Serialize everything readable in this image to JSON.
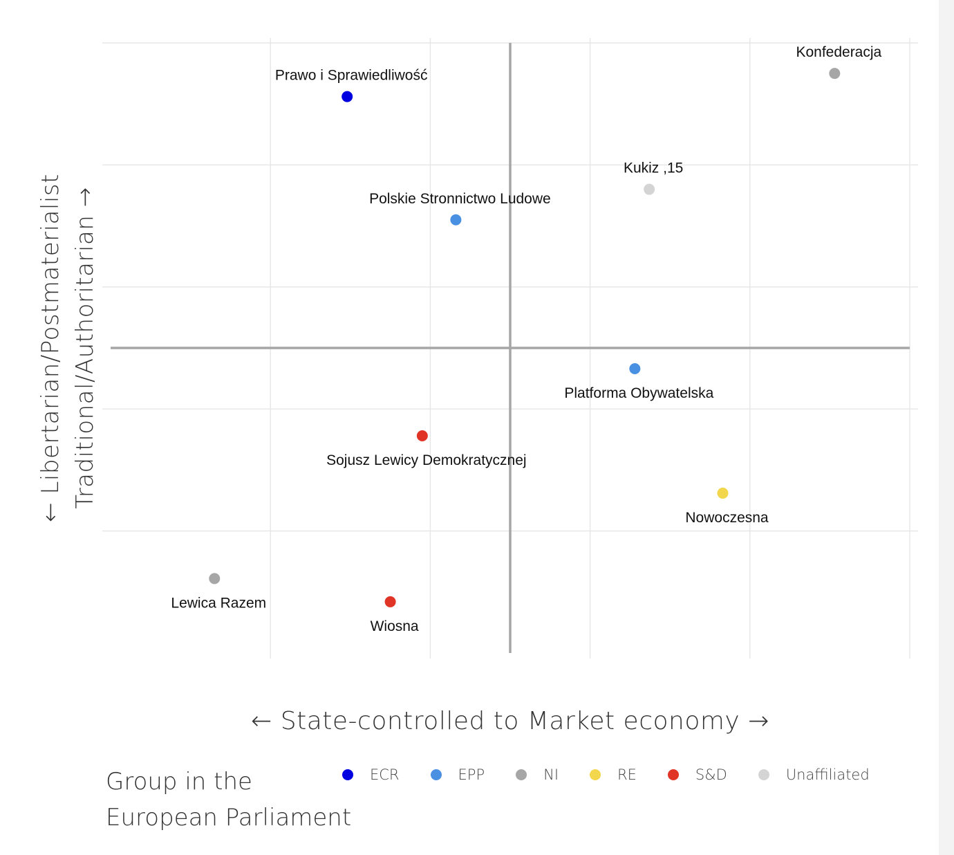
{
  "chart_data": {
    "type": "scatter",
    "xlabel": "← State-controlled to Market economy →",
    "ylabel_lines": [
      "← Libertarian/Postmaterialist",
      "Traditional/Authoritarian →"
    ],
    "xlim": [
      -2.5,
      2.5
    ],
    "ylim": [
      -2.5,
      2.5
    ],
    "grid": true,
    "legend_title_lines": [
      "Group in the",
      "European Parliament"
    ],
    "legend_position": "bottom",
    "groups": [
      {
        "name": "ECR",
        "color": "#0000e0"
      },
      {
        "name": "EPP",
        "color": "#4a90e2"
      },
      {
        "name": "NI",
        "color": "#a6a6a6"
      },
      {
        "name": "RE",
        "color": "#f2d64b"
      },
      {
        "name": "S&D",
        "color": "#e03526"
      },
      {
        "name": "Unaffiliated",
        "color": "#d4d4d4"
      }
    ],
    "points": [
      {
        "label": "Konfederacja",
        "group": "NI",
        "x": 2.03,
        "y": 2.25,
        "label_pos": "above"
      },
      {
        "label": "Prawo i Sprawiedliwość",
        "group": "ECR",
        "x": -1.02,
        "y": 2.06,
        "label_pos": "above"
      },
      {
        "label": "Kukiz ,15",
        "group": "Unaffiliated",
        "x": 0.87,
        "y": 1.3,
        "label_pos": "above"
      },
      {
        "label": "Polskie Stronnictwo Ludowe",
        "group": "EPP",
        "x": -0.34,
        "y": 1.05,
        "label_pos": "above"
      },
      {
        "label": "Platforma Obywatelska",
        "group": "EPP",
        "x": 0.78,
        "y": -0.17,
        "label_pos": "below"
      },
      {
        "label": "Sojusz Lewicy Demokratycznej",
        "group": "S&D",
        "x": -0.55,
        "y": -0.72,
        "label_pos": "below"
      },
      {
        "label": "Nowoczesna",
        "group": "RE",
        "x": 1.33,
        "y": -1.19,
        "label_pos": "below"
      },
      {
        "label": "Lewica Razem",
        "group": "NI",
        "x": -1.85,
        "y": -1.89,
        "label_pos": "below"
      },
      {
        "label": "Wiosna",
        "group": "S&D",
        "x": -0.75,
        "y": -2.08,
        "label_pos": "below"
      }
    ]
  }
}
